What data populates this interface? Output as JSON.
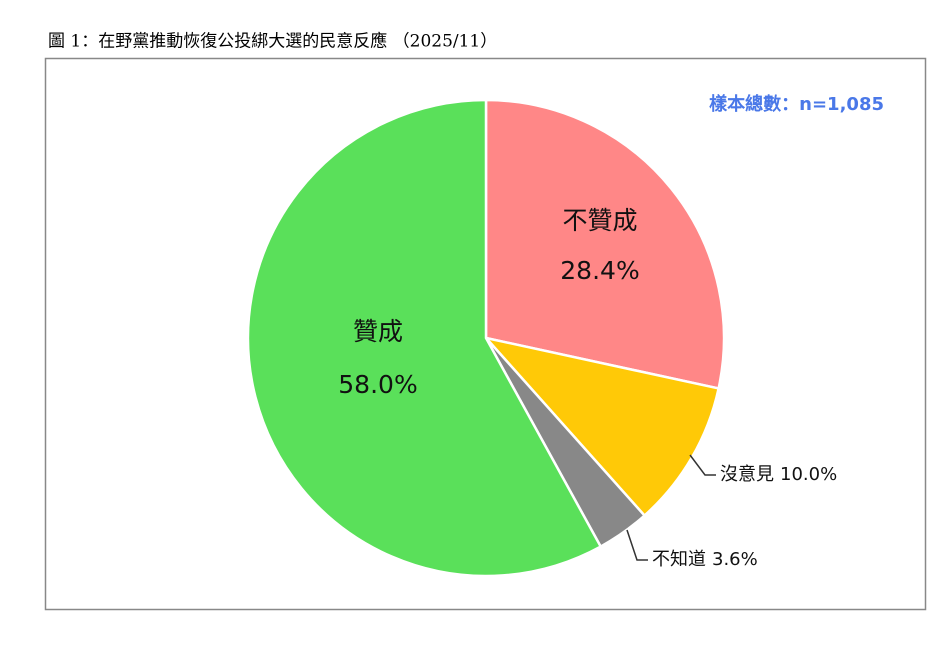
{
  "chart_data": {
    "type": "pie",
    "title": "圖 1：在野黨推動恢復公投綁大選的民意反應 （2025/11）",
    "annotation": "樣本總數：n=1,085",
    "categories": [
      "不贊成",
      "沒意見",
      "不知道",
      "贊成"
    ],
    "values": [
      28.4,
      10.0,
      3.6,
      58.0
    ],
    "value_labels": [
      "28.4%",
      "10.0%",
      "3.6%",
      "58.0%"
    ],
    "colors": [
      "#ff8787",
      "#ffc907",
      "#888888",
      "#5ae05a"
    ]
  }
}
